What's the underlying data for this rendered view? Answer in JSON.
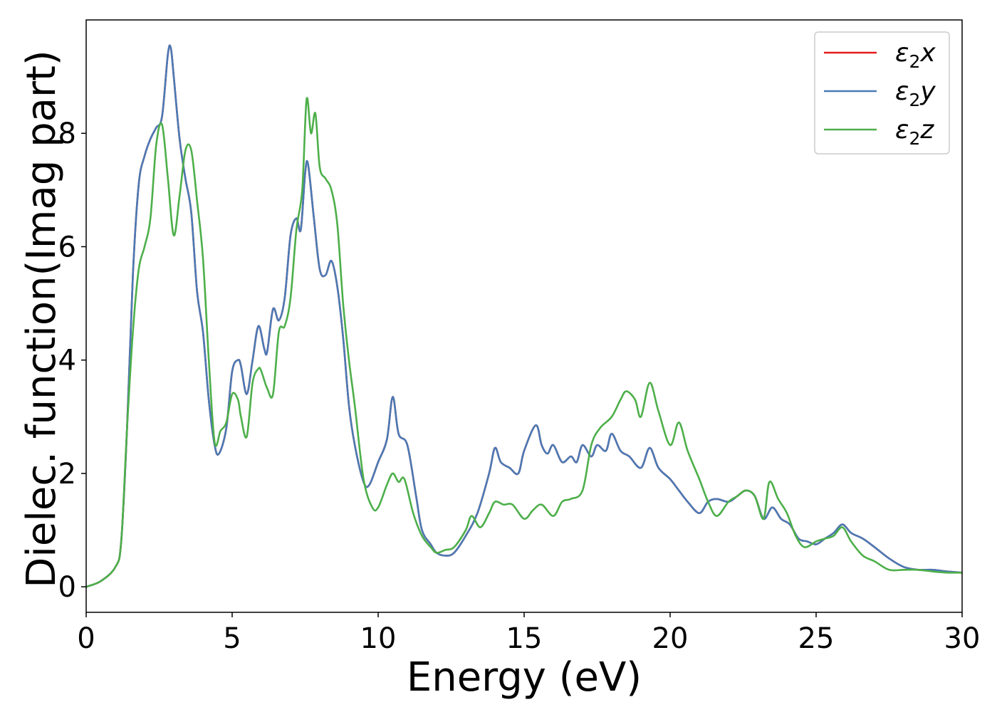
{
  "chart_data": {
    "type": "line",
    "title": "",
    "xlabel": "Energy (eV)",
    "ylabel": "Dielec. function(Imag part)",
    "xlim": [
      0,
      30
    ],
    "ylim": [
      -0.45,
      10.0
    ],
    "xticks": [
      0,
      5,
      10,
      15,
      20,
      25,
      30
    ],
    "yticks": [
      0,
      2,
      4,
      6,
      8
    ],
    "grid": false,
    "legend_position": "top-right",
    "series": [
      {
        "name": "ε2x",
        "legend_base": "ε",
        "legend_sub": "2",
        "legend_tail": "x",
        "color": "#e41a1c",
        "x": [
          0,
          0.5,
          1.0,
          1.2,
          1.4,
          1.6,
          1.8,
          2.0,
          2.2,
          2.4,
          2.6,
          2.8,
          2.9,
          3.0,
          3.2,
          3.4,
          3.6,
          3.8,
          4.0,
          4.2,
          4.4,
          4.55,
          4.8,
          5.0,
          5.2,
          5.3,
          5.5,
          5.7,
          5.9,
          6.1,
          6.2,
          6.4,
          6.6,
          6.8,
          7.0,
          7.2,
          7.35,
          7.5,
          7.6,
          7.8,
          8.0,
          8.2,
          8.4,
          8.6,
          8.8,
          9.0,
          9.2,
          9.5,
          9.7,
          10.0,
          10.3,
          10.5,
          10.7,
          11.0,
          11.3,
          11.5,
          11.8,
          12.0,
          12.3,
          12.6,
          13.0,
          13.4,
          13.8,
          14.0,
          14.2,
          14.5,
          14.8,
          15.0,
          15.4,
          15.6,
          15.8,
          16.0,
          16.3,
          16.6,
          16.8,
          17.0,
          17.3,
          17.5,
          17.8,
          18.0,
          18.3,
          18.6,
          19.0,
          19.3,
          19.6,
          20.0,
          20.3,
          20.6,
          21.0,
          21.3,
          21.6,
          22.0,
          22.3,
          22.6,
          22.9,
          23.2,
          23.5,
          23.8,
          24.1,
          24.4,
          24.7,
          25.0,
          25.3,
          25.6,
          25.9,
          26.2,
          26.6,
          27.0,
          27.5,
          28.0,
          28.5,
          29.0,
          29.5,
          30.0
        ],
        "y": [
          0.0,
          0.1,
          0.35,
          0.8,
          2.8,
          5.5,
          7.1,
          7.6,
          7.9,
          8.1,
          8.3,
          9.4,
          9.5,
          9.0,
          7.9,
          7.2,
          6.6,
          5.2,
          4.5,
          3.3,
          2.5,
          2.35,
          2.8,
          3.8,
          4.0,
          3.9,
          3.4,
          4.0,
          4.6,
          4.2,
          4.15,
          4.9,
          4.7,
          5.1,
          6.2,
          6.5,
          6.3,
          7.3,
          7.45,
          6.5,
          5.6,
          5.5,
          5.75,
          5.3,
          4.4,
          3.2,
          2.5,
          1.85,
          1.8,
          2.2,
          2.6,
          3.35,
          2.7,
          2.5,
          1.6,
          1.0,
          0.75,
          0.6,
          0.55,
          0.6,
          0.9,
          1.3,
          2.0,
          2.45,
          2.2,
          2.1,
          2.0,
          2.4,
          2.85,
          2.5,
          2.35,
          2.5,
          2.2,
          2.3,
          2.2,
          2.5,
          2.3,
          2.5,
          2.4,
          2.7,
          2.4,
          2.3,
          2.1,
          2.45,
          2.1,
          1.9,
          1.7,
          1.5,
          1.3,
          1.5,
          1.55,
          1.5,
          1.6,
          1.7,
          1.6,
          1.2,
          1.4,
          1.2,
          1.1,
          0.85,
          0.8,
          0.75,
          0.85,
          0.95,
          1.1,
          0.95,
          0.85,
          0.7,
          0.5,
          0.35,
          0.3,
          0.3,
          0.27,
          0.25
        ]
      },
      {
        "name": "ε2y",
        "legend_base": "ε",
        "legend_sub": "2",
        "legend_tail": "y",
        "color": "#4a7ab5",
        "x": [
          0,
          0.5,
          1.0,
          1.2,
          1.4,
          1.6,
          1.8,
          2.0,
          2.2,
          2.4,
          2.6,
          2.8,
          2.9,
          3.0,
          3.2,
          3.4,
          3.6,
          3.8,
          4.0,
          4.2,
          4.4,
          4.55,
          4.8,
          5.0,
          5.2,
          5.3,
          5.5,
          5.7,
          5.9,
          6.1,
          6.2,
          6.4,
          6.6,
          6.8,
          7.0,
          7.2,
          7.35,
          7.5,
          7.6,
          7.8,
          8.0,
          8.2,
          8.4,
          8.6,
          8.8,
          9.0,
          9.2,
          9.5,
          9.7,
          10.0,
          10.3,
          10.5,
          10.7,
          11.0,
          11.3,
          11.5,
          11.8,
          12.0,
          12.3,
          12.6,
          13.0,
          13.4,
          13.8,
          14.0,
          14.2,
          14.5,
          14.8,
          15.0,
          15.4,
          15.6,
          15.8,
          16.0,
          16.3,
          16.6,
          16.8,
          17.0,
          17.3,
          17.5,
          17.8,
          18.0,
          18.3,
          18.6,
          19.0,
          19.3,
          19.6,
          20.0,
          20.3,
          20.6,
          21.0,
          21.3,
          21.6,
          22.0,
          22.3,
          22.6,
          22.9,
          23.2,
          23.5,
          23.8,
          24.1,
          24.4,
          24.7,
          25.0,
          25.3,
          25.6,
          25.9,
          26.2,
          26.6,
          27.0,
          27.5,
          28.0,
          28.5,
          29.0,
          29.5,
          30.0
        ],
        "y": [
          0.0,
          0.1,
          0.35,
          0.8,
          2.8,
          5.5,
          7.1,
          7.6,
          7.9,
          8.1,
          8.3,
          9.4,
          9.5,
          9.0,
          7.9,
          7.2,
          6.6,
          5.2,
          4.5,
          3.3,
          2.5,
          2.35,
          2.8,
          3.8,
          4.0,
          3.9,
          3.4,
          4.0,
          4.6,
          4.2,
          4.15,
          4.9,
          4.7,
          5.1,
          6.2,
          6.5,
          6.3,
          7.3,
          7.45,
          6.5,
          5.6,
          5.5,
          5.75,
          5.3,
          4.4,
          3.2,
          2.5,
          1.85,
          1.8,
          2.2,
          2.6,
          3.35,
          2.7,
          2.5,
          1.6,
          1.0,
          0.75,
          0.6,
          0.55,
          0.6,
          0.9,
          1.3,
          2.0,
          2.45,
          2.2,
          2.1,
          2.0,
          2.4,
          2.85,
          2.5,
          2.35,
          2.5,
          2.2,
          2.3,
          2.2,
          2.5,
          2.3,
          2.5,
          2.4,
          2.7,
          2.4,
          2.3,
          2.1,
          2.45,
          2.1,
          1.9,
          1.7,
          1.5,
          1.3,
          1.5,
          1.55,
          1.5,
          1.6,
          1.7,
          1.6,
          1.2,
          1.4,
          1.2,
          1.1,
          0.85,
          0.8,
          0.75,
          0.85,
          0.95,
          1.1,
          0.95,
          0.85,
          0.7,
          0.5,
          0.35,
          0.3,
          0.3,
          0.27,
          0.25
        ]
      },
      {
        "name": "ε2z",
        "legend_base": "ε",
        "legend_sub": "2",
        "legend_tail": "z",
        "color": "#4daf4a",
        "x": [
          0,
          0.5,
          1.0,
          1.2,
          1.4,
          1.6,
          1.8,
          2.0,
          2.2,
          2.4,
          2.6,
          2.8,
          3.0,
          3.2,
          3.4,
          3.6,
          3.8,
          4.0,
          4.2,
          4.4,
          4.6,
          4.8,
          5.0,
          5.2,
          5.3,
          5.5,
          5.7,
          5.9,
          6.0,
          6.2,
          6.4,
          6.6,
          6.8,
          7.0,
          7.2,
          7.4,
          7.55,
          7.7,
          7.85,
          8.0,
          8.2,
          8.4,
          8.6,
          8.8,
          9.0,
          9.2,
          9.5,
          9.8,
          10.0,
          10.3,
          10.5,
          10.7,
          10.9,
          11.2,
          11.5,
          11.8,
          12.0,
          12.3,
          12.6,
          13.0,
          13.2,
          13.5,
          13.8,
          14.0,
          14.3,
          14.6,
          15.0,
          15.3,
          15.6,
          16.0,
          16.3,
          16.6,
          17.0,
          17.3,
          17.6,
          18.0,
          18.3,
          18.5,
          18.8,
          19.0,
          19.3,
          19.6,
          20.0,
          20.3,
          20.6,
          21.0,
          21.3,
          21.6,
          22.0,
          22.3,
          22.6,
          22.9,
          23.2,
          23.4,
          23.7,
          24.0,
          24.3,
          24.6,
          25.0,
          25.3,
          25.6,
          25.9,
          26.2,
          26.6,
          27.0,
          27.5,
          28.0,
          28.5,
          29.0,
          29.5,
          30.0
        ],
        "y": [
          0.0,
          0.1,
          0.35,
          0.8,
          2.8,
          4.5,
          5.6,
          6.0,
          6.5,
          7.8,
          8.15,
          7.2,
          6.2,
          6.9,
          7.7,
          7.7,
          6.8,
          5.8,
          4.0,
          2.55,
          2.75,
          2.9,
          3.4,
          3.3,
          3.0,
          2.65,
          3.6,
          3.85,
          3.8,
          3.5,
          3.4,
          4.5,
          4.6,
          5.1,
          6.3,
          7.0,
          8.6,
          8.0,
          8.35,
          7.4,
          7.2,
          7.0,
          6.4,
          5.0,
          4.0,
          3.2,
          1.9,
          1.4,
          1.4,
          1.8,
          2.0,
          1.85,
          1.9,
          1.3,
          0.9,
          0.7,
          0.6,
          0.65,
          0.7,
          1.0,
          1.25,
          1.05,
          1.3,
          1.5,
          1.45,
          1.45,
          1.2,
          1.35,
          1.45,
          1.25,
          1.5,
          1.55,
          1.7,
          2.5,
          2.8,
          3.0,
          3.3,
          3.45,
          3.3,
          3.0,
          3.6,
          3.1,
          2.5,
          2.9,
          2.4,
          1.9,
          1.5,
          1.25,
          1.5,
          1.6,
          1.7,
          1.6,
          1.2,
          1.85,
          1.55,
          1.3,
          0.9,
          0.7,
          0.8,
          0.85,
          0.9,
          1.05,
          0.8,
          0.55,
          0.45,
          0.3,
          0.3,
          0.3,
          0.27,
          0.25,
          0.25
        ]
      }
    ]
  }
}
